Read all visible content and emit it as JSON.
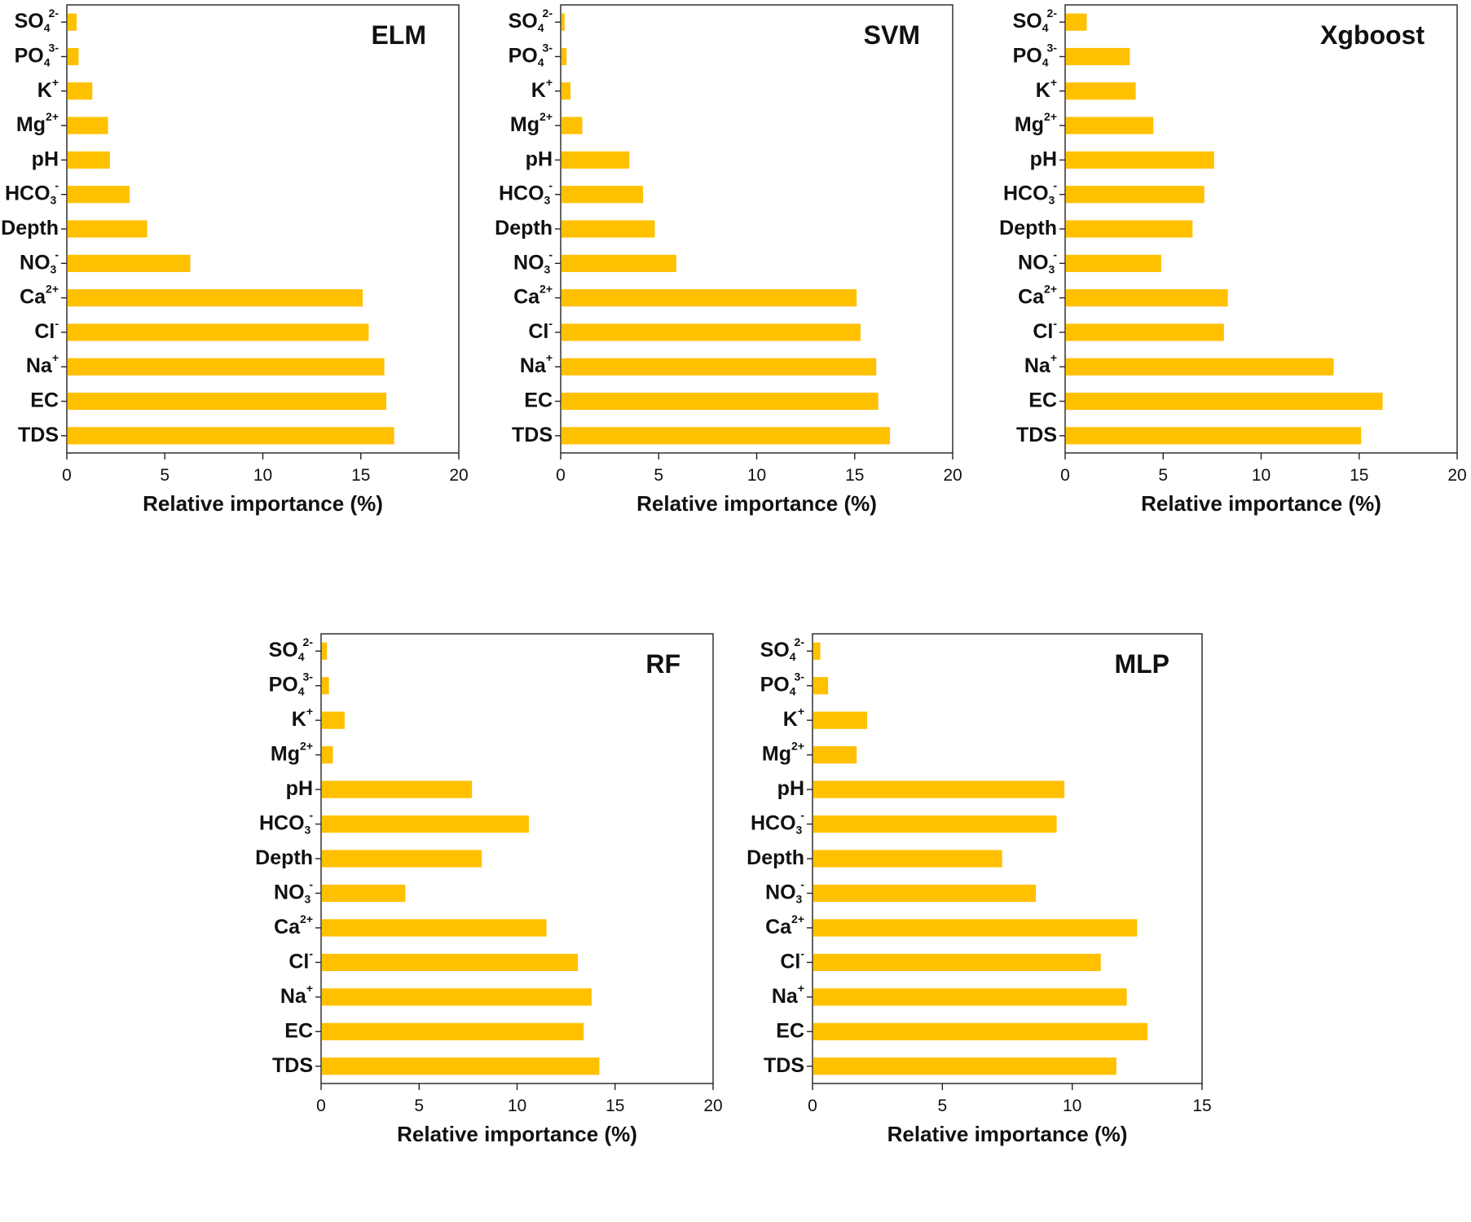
{
  "chart_data": [
    {
      "type": "bar",
      "orientation": "horizontal",
      "title": "ELM",
      "xlabel": "Relative importance (%)",
      "ylabel": "",
      "xlim": [
        0,
        20
      ],
      "xticks": [
        "0",
        "5",
        "10",
        "15",
        "20"
      ],
      "categories": [
        "TDS",
        "EC",
        "Na+",
        "Cl-",
        "Ca2+",
        "NO3-",
        "Depth",
        "HCO3-",
        "pH",
        "Mg2+",
        "K+",
        "PO43-",
        "SO42-"
      ],
      "values": [
        16.7,
        16.3,
        16.2,
        15.4,
        15.1,
        6.3,
        4.1,
        3.2,
        2.2,
        2.1,
        1.3,
        0.6,
        0.5
      ],
      "color": "#FFC000"
    },
    {
      "type": "bar",
      "orientation": "horizontal",
      "title": "SVM",
      "xlabel": "Relative importance (%)",
      "ylabel": "",
      "xlim": [
        0,
        20
      ],
      "xticks": [
        "0",
        "5",
        "10",
        "15",
        "20"
      ],
      "categories": [
        "TDS",
        "EC",
        "Na+",
        "Cl-",
        "Ca2+",
        "NO3-",
        "Depth",
        "HCO3-",
        "pH",
        "Mg2+",
        "K+",
        "PO43-",
        "SO42-"
      ],
      "values": [
        16.8,
        16.2,
        16.1,
        15.3,
        15.1,
        5.9,
        4.8,
        4.2,
        3.5,
        1.1,
        0.5,
        0.3,
        0.2
      ],
      "color": "#FFC000"
    },
    {
      "type": "bar",
      "orientation": "horizontal",
      "title": "Xgboost",
      "xlabel": "Relative importance (%)",
      "ylabel": "",
      "xlim": [
        0,
        20
      ],
      "xticks": [
        "0",
        "5",
        "10",
        "15",
        "20"
      ],
      "categories": [
        "TDS",
        "EC",
        "Na+",
        "Cl-",
        "Ca2+",
        "NO3-",
        "Depth",
        "HCO3-",
        "pH",
        "Mg2+",
        "K+",
        "PO43-",
        "SO42-"
      ],
      "values": [
        15.1,
        16.2,
        13.7,
        8.1,
        8.3,
        4.9,
        6.5,
        7.1,
        7.6,
        4.5,
        3.6,
        3.3,
        1.1
      ],
      "color": "#FFC000"
    },
    {
      "type": "bar",
      "orientation": "horizontal",
      "title": "RF",
      "xlabel": "Relative importance (%)",
      "ylabel": "",
      "xlim": [
        0,
        20
      ],
      "xticks": [
        "0",
        "5",
        "10",
        "15",
        "20"
      ],
      "categories": [
        "TDS",
        "EC",
        "Na+",
        "Cl-",
        "Ca2+",
        "NO3-",
        "Depth",
        "HCO3-",
        "pH",
        "Mg2+",
        "K+",
        "PO43-",
        "SO42-"
      ],
      "values": [
        14.2,
        13.4,
        13.8,
        13.1,
        11.5,
        4.3,
        8.2,
        10.6,
        7.7,
        0.6,
        1.2,
        0.4,
        0.3
      ],
      "color": "#FFC000"
    },
    {
      "type": "bar",
      "orientation": "horizontal",
      "title": "MLP",
      "xlabel": "Relative importance (%)",
      "ylabel": "",
      "xlim": [
        0,
        15
      ],
      "xticks": [
        "0",
        "5",
        "10",
        "15"
      ],
      "categories": [
        "TDS",
        "EC",
        "Na+",
        "Cl-",
        "Ca2+",
        "NO3-",
        "Depth",
        "HCO3-",
        "pH",
        "Mg2+",
        "K+",
        "PO43-",
        "SO42-"
      ],
      "values": [
        11.7,
        12.9,
        12.1,
        11.1,
        12.5,
        8.6,
        7.3,
        9.4,
        9.7,
        1.7,
        2.1,
        0.6,
        0.3
      ],
      "color": "#FFC000"
    }
  ],
  "category_labels": {
    "TDS": {
      "base": "TDS",
      "sup": "",
      "sub": ""
    },
    "EC": {
      "base": "EC",
      "sup": "",
      "sub": ""
    },
    "Na+": {
      "base": "Na",
      "sup": "+",
      "sub": ""
    },
    "Cl-": {
      "base": "Cl",
      "sup": "-",
      "sub": ""
    },
    "Ca2+": {
      "base": "Ca",
      "sup": "2+",
      "sub": ""
    },
    "NO3-": {
      "base": "NO",
      "sup": "-",
      "sub": "3"
    },
    "Depth": {
      "base": "Depth",
      "sup": "",
      "sub": ""
    },
    "HCO3-": {
      "base": "HCO",
      "sup": "-",
      "sub": "3"
    },
    "pH": {
      "base": "pH",
      "sup": "",
      "sub": ""
    },
    "Mg2+": {
      "base": "Mg",
      "sup": "2+",
      "sub": ""
    },
    "K+": {
      "base": "K",
      "sup": "+",
      "sub": ""
    },
    "PO43-": {
      "base": "PO",
      "sup": "3-",
      "sub": "4"
    },
    "SO42-": {
      "base": "SO",
      "sup": "2-",
      "sub": "4"
    }
  }
}
